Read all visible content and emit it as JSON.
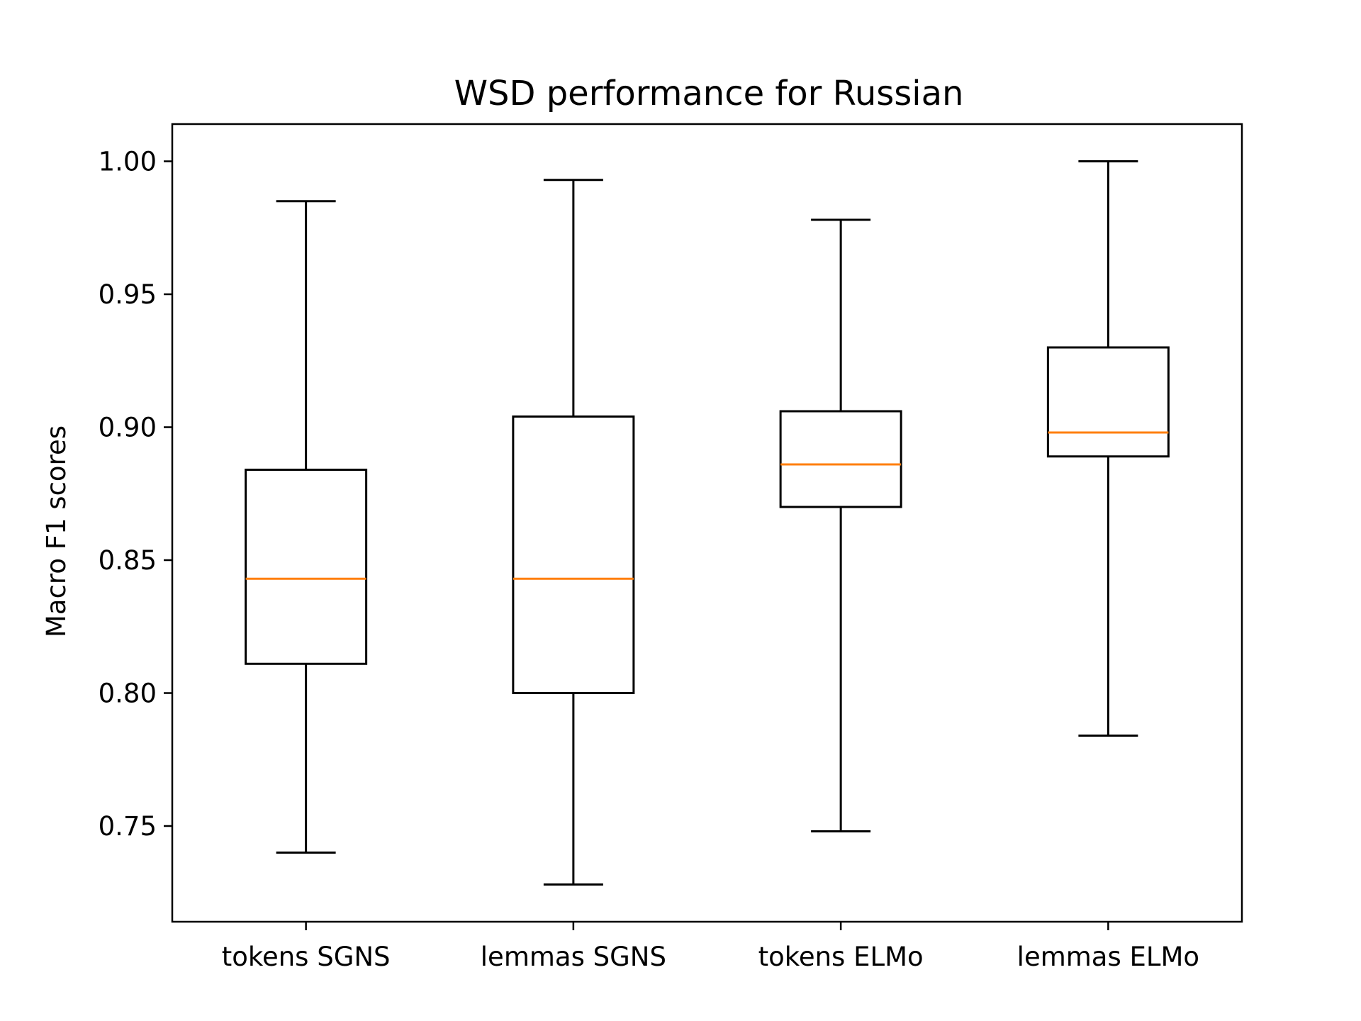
{
  "chart_data": {
    "type": "boxplot",
    "title": "WSD performance for Russian",
    "xlabel": "",
    "ylabel": "Macro F1 scores",
    "ylim": [
      0.714,
      1.014
    ],
    "yticks": [
      "0.75",
      "0.80",
      "0.85",
      "0.90",
      "0.95",
      "1.00"
    ],
    "grid": false,
    "colors": {
      "box": "#000000",
      "median": "#ff7f0e"
    },
    "categories": [
      "tokens SGNS",
      "lemmas SGNS",
      "tokens ELMo",
      "lemmas ELMo"
    ],
    "boxes": [
      {
        "whisker_low": 0.74,
        "q1": 0.811,
        "median": 0.843,
        "q3": 0.884,
        "whisker_high": 0.985
      },
      {
        "whisker_low": 0.728,
        "q1": 0.8,
        "median": 0.843,
        "q3": 0.904,
        "whisker_high": 0.993
      },
      {
        "whisker_low": 0.748,
        "q1": 0.87,
        "median": 0.886,
        "q3": 0.906,
        "whisker_high": 0.978
      },
      {
        "whisker_low": 0.784,
        "q1": 0.889,
        "median": 0.898,
        "q3": 0.93,
        "whisker_high": 1.0
      }
    ]
  }
}
